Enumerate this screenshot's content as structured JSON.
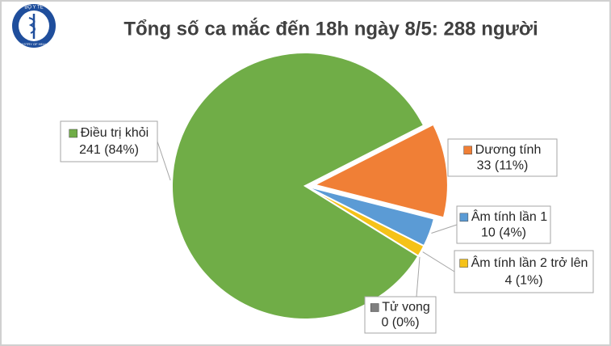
{
  "logo": {
    "top": "BỘ Y TẾ",
    "bottom": "MINISTRY OF HEALTH"
  },
  "chart_data": {
    "type": "pie",
    "title": "Tổng số ca mắc đến 18h ngày 8/5: 288 người",
    "categories": [
      "Dương tính",
      "Âm tính lần 1",
      "Âm tính lần 2 trở lên",
      "Tử vong",
      "Điều trị khỏi"
    ],
    "values": [
      33,
      10,
      4,
      0,
      241
    ],
    "value_labels": [
      "33 (11%)",
      "10 (4%)",
      "4 (1%)",
      "0 (0%)",
      "241 (84%)"
    ],
    "colors": [
      "#f07f36",
      "#5b9bd5",
      "#f5c218",
      "#7f7f7f",
      "#70ad47"
    ]
  }
}
